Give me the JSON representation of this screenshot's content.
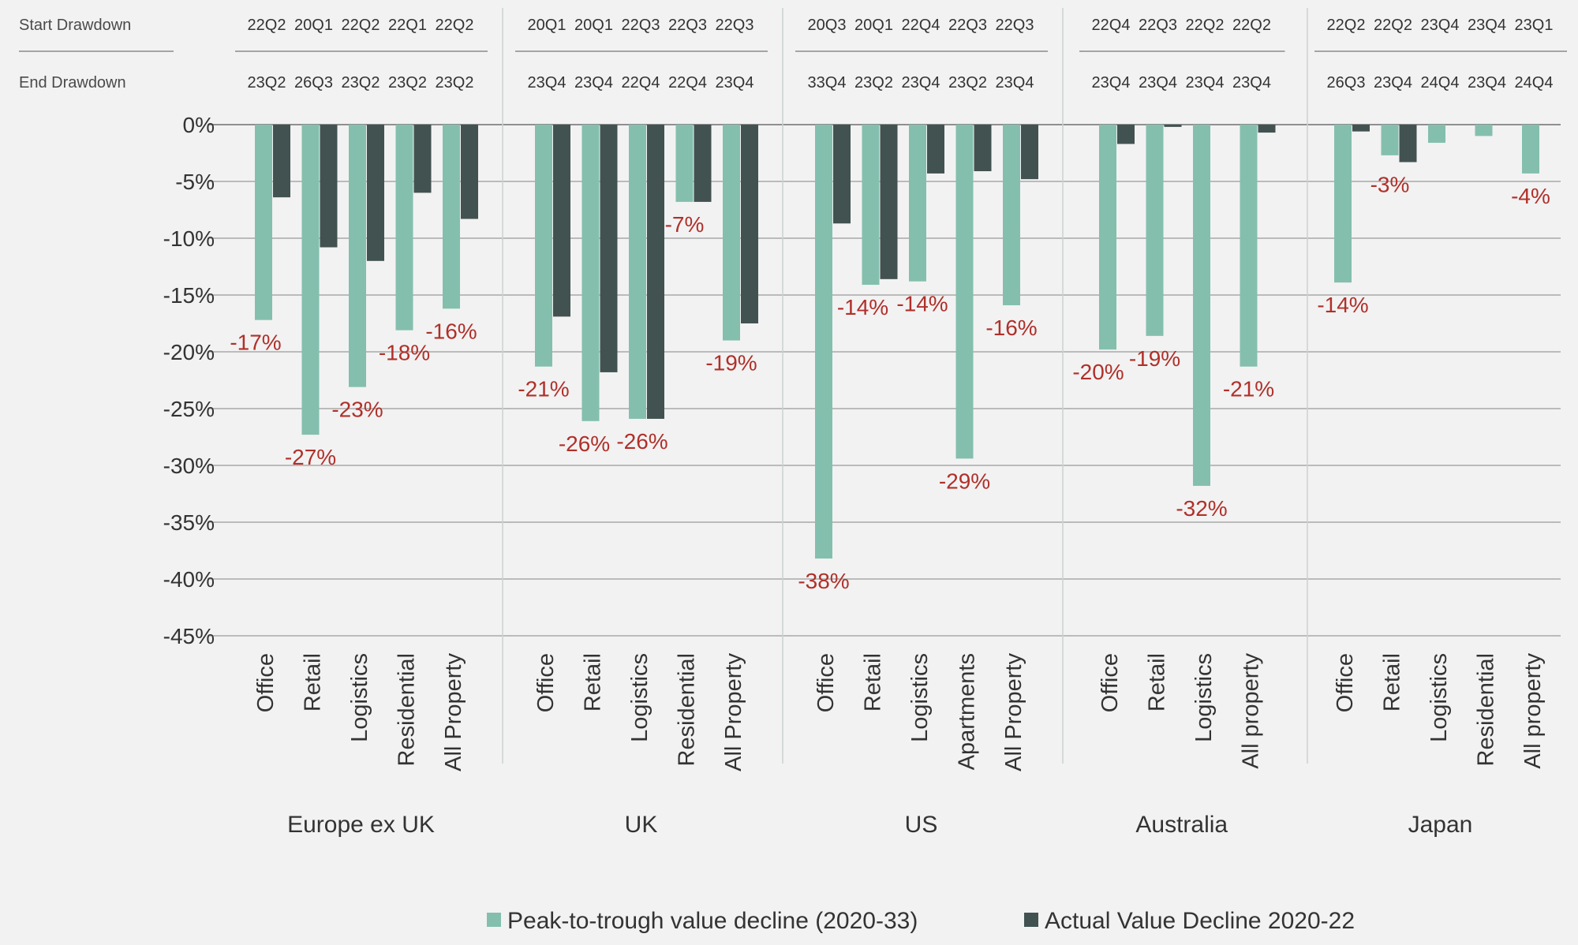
{
  "chart_data": {
    "type": "bar",
    "row_labels": {
      "start": "Start Drawdown",
      "end": "End Drawdown"
    },
    "ylim": [
      -45,
      0
    ],
    "yticks": [
      0,
      -5,
      -10,
      -15,
      -20,
      -25,
      -30,
      -35,
      -40,
      -45
    ],
    "ytick_labels": [
      "0%",
      "-5%",
      "-10%",
      "-15%",
      "-20%",
      "-25%",
      "-30%",
      "-35%",
      "-40%",
      "-45%"
    ],
    "grid": true,
    "legend_position": "bottom",
    "series": [
      {
        "name": "Peak-to-trough value decline (2020-33)",
        "color": "#84bfae"
      },
      {
        "name": "Actual Value Decline 2020-22",
        "color": "#425250"
      }
    ],
    "groups": [
      {
        "name": "Europe ex UK",
        "categories": [
          "Office",
          "Retail",
          "Logistics",
          "Residential",
          "All Property"
        ],
        "start": [
          "22Q2",
          "20Q1",
          "22Q2",
          "22Q1",
          "22Q2"
        ],
        "end": [
          "23Q2",
          "26Q3",
          "23Q2",
          "23Q2",
          "23Q2"
        ],
        "peak": [
          -17.2,
          -27.3,
          -23.1,
          -18.1,
          -16.2
        ],
        "actual": [
          -6.4,
          -10.8,
          -12.0,
          -6.0,
          -8.3
        ],
        "labels": [
          "-17%",
          "-27%",
          "-23%",
          "-18%",
          "-16%"
        ]
      },
      {
        "name": "UK",
        "categories": [
          "Office",
          "Retail",
          "Logistics",
          "Residential",
          "All Property"
        ],
        "start": [
          "20Q1",
          "20Q1",
          "22Q3",
          "22Q3",
          "22Q3"
        ],
        "end": [
          "23Q4",
          "23Q4",
          "22Q4",
          "22Q4",
          "23Q4"
        ],
        "peak": [
          -21.3,
          -26.1,
          -25.9,
          -6.8,
          -19.0
        ],
        "actual": [
          -16.9,
          -21.8,
          -25.9,
          -6.8,
          -17.5
        ],
        "labels": [
          "-21%",
          "-26%",
          "-26%",
          "-7%",
          "-19%"
        ]
      },
      {
        "name": "US",
        "categories": [
          "Office",
          "Retail",
          "Logistics",
          "Apartments",
          "All Property"
        ],
        "start": [
          "20Q3",
          "20Q1",
          "22Q4",
          "22Q3",
          "22Q3"
        ],
        "end": [
          "33Q4",
          "23Q2",
          "23Q4",
          "23Q2",
          "23Q4"
        ],
        "peak": [
          -38.2,
          -14.1,
          -13.8,
          -29.4,
          -15.9
        ],
        "actual": [
          -8.7,
          -13.6,
          -4.3,
          -4.1,
          -4.8
        ],
        "labels": [
          "-38%",
          "-14%",
          "-14%",
          "-29%",
          "-16%"
        ]
      },
      {
        "name": "Australia",
        "categories": [
          "Office",
          "Retail",
          "Logistics",
          "All property"
        ],
        "start": [
          "22Q4",
          "22Q3",
          "22Q2",
          "22Q2"
        ],
        "end": [
          "23Q4",
          "23Q4",
          "23Q4",
          "23Q4"
        ],
        "peak": [
          -19.8,
          -18.6,
          -31.8,
          -21.3
        ],
        "actual": [
          -1.7,
          -0.2,
          0,
          -0.7
        ],
        "labels": [
          "-20%",
          "-19%",
          "-32%",
          "-21%"
        ]
      },
      {
        "name": "Japan",
        "categories": [
          "Office",
          "Retail",
          "Logistics",
          "Residential",
          "All property"
        ],
        "start": [
          "22Q2",
          "22Q2",
          "23Q4",
          "23Q4",
          "23Q1"
        ],
        "end": [
          "26Q3",
          "23Q4",
          "24Q4",
          "23Q4",
          "24Q4"
        ],
        "peak": [
          -13.9,
          -2.7,
          -1.6,
          -1.0,
          -4.3
        ],
        "actual": [
          -0.6,
          -3.3,
          0,
          0,
          0
        ],
        "labels": [
          "-14%",
          "-3%",
          "",
          "",
          "-4%"
        ]
      }
    ]
  }
}
